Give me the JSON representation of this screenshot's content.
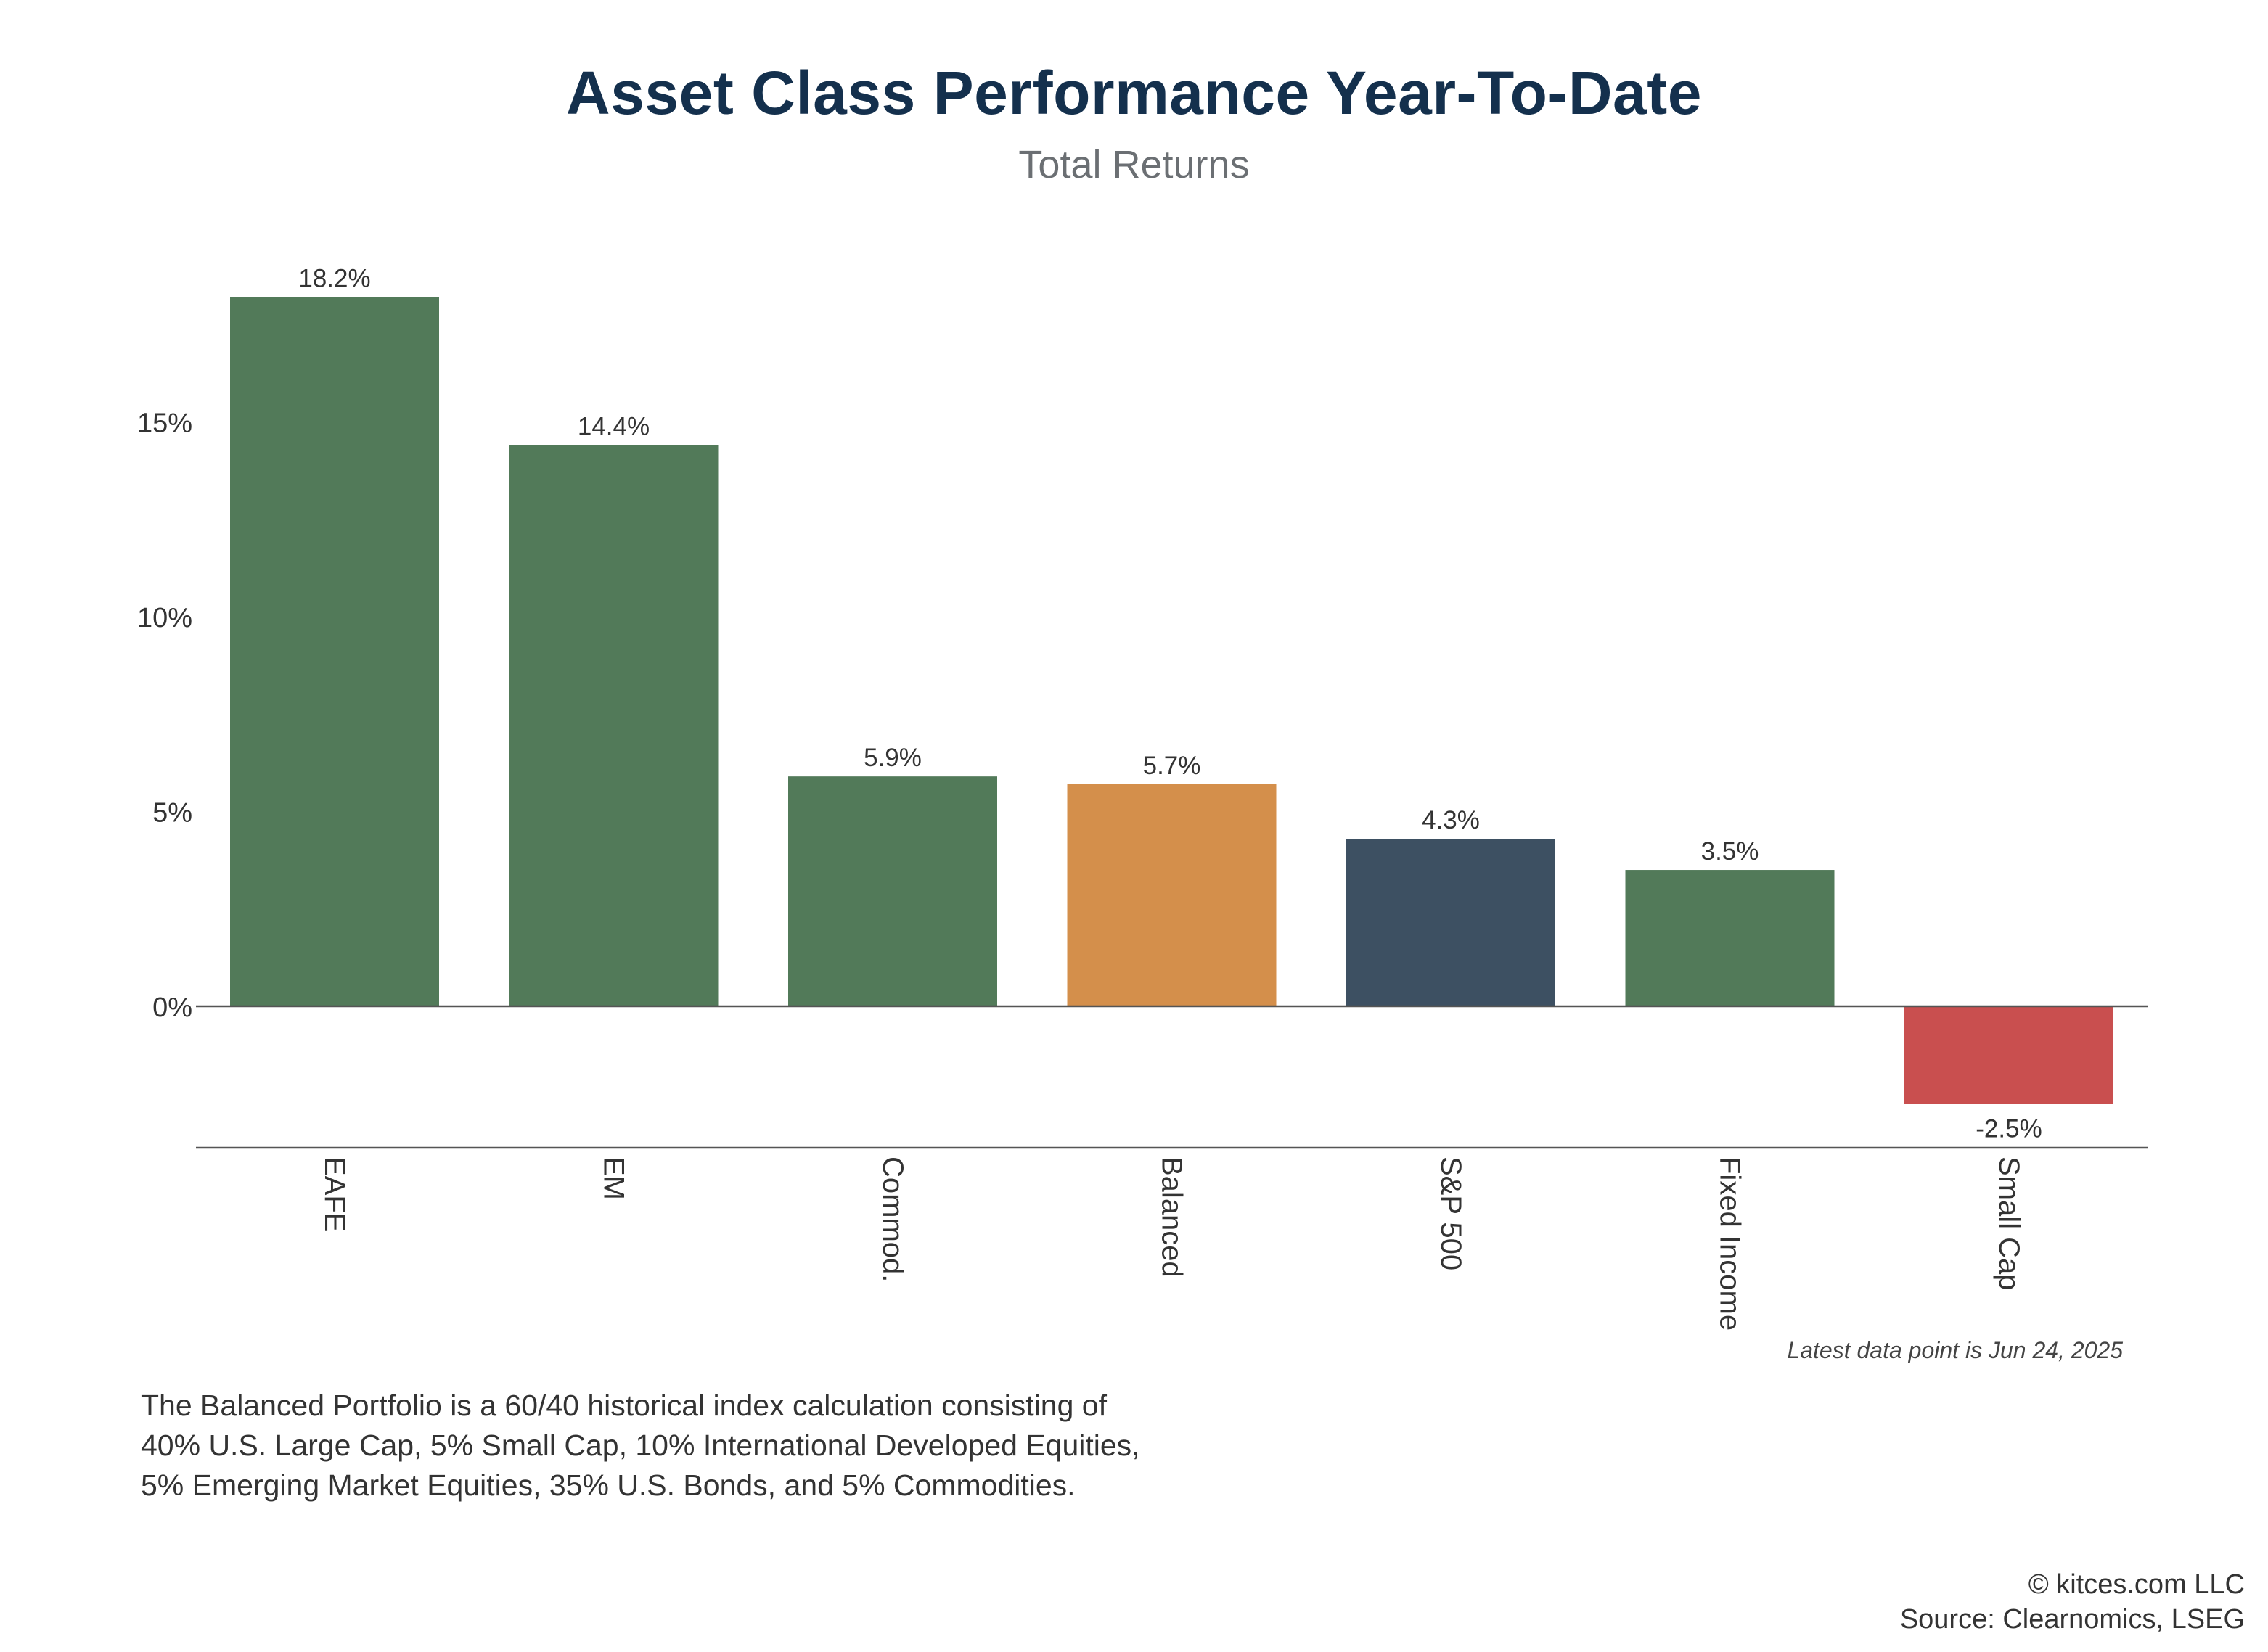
{
  "header": {
    "title": "Asset Class Performance Year-To-Date",
    "subtitle": "Total Returns"
  },
  "chart_data": {
    "type": "bar",
    "title": "Asset Class Performance Year-To-Date",
    "subtitle": "Total Returns",
    "categories": [
      "EAFE",
      "EM",
      "Commod.",
      "Balanced",
      "S&P 500",
      "Fixed Income",
      "Small Cap"
    ],
    "values": [
      18.2,
      14.4,
      5.9,
      5.7,
      4.3,
      3.5,
      -2.5
    ],
    "data_labels": [
      "18.2%",
      "14.4%",
      "5.9%",
      "5.7%",
      "4.3%",
      "3.5%",
      "-2.5%"
    ],
    "colors": [
      "#527a59",
      "#527a59",
      "#527a59",
      "#d48f4b",
      "#3d5062",
      "#527a59",
      "#c94f4f"
    ],
    "y_ticks": [
      0,
      5,
      10,
      15
    ],
    "y_tick_labels": [
      "0%",
      "5%",
      "10%",
      "15%"
    ],
    "ylim": [
      -3.7,
      18.2
    ],
    "xlabel": "",
    "ylabel": "",
    "grid": false,
    "legend": "none",
    "x_label_rotation": "90deg"
  },
  "annotation": "Latest data point is Jun 24, 2025",
  "footnote": {
    "lines": [
      "The Balanced Portfolio is a 60/40 historical index calculation consisting of",
      "40% U.S. Large Cap, 5% Small Cap, 10% International Developed Equities,",
      "5% Emerging Market Equities, 35% U.S. Bonds, and 5% Commodities."
    ]
  },
  "credits": {
    "copyright": "© kitces.com LLC",
    "source": "Source: Clearnomics, LSEG"
  }
}
